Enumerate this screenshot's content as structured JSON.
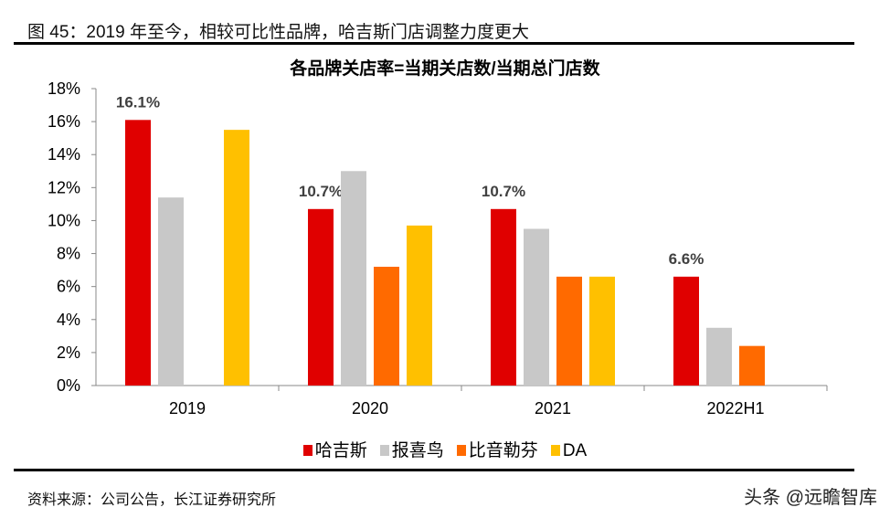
{
  "figure_title": "图 45：2019 年至今，相较可比性品牌，哈吉斯门店调整力度更大",
  "source": "资料来源：公司公告，长江证券研究所",
  "watermark": "头条 @远瞻智库",
  "chart_data": {
    "type": "bar",
    "title": "各品牌关店率=当期关店数/当期总门店数",
    "categories": [
      "2019",
      "2020",
      "2021",
      "2022H1"
    ],
    "ylim": [
      0,
      18
    ],
    "yticks": [
      0,
      2,
      4,
      6,
      8,
      10,
      12,
      14,
      16,
      18
    ],
    "ytick_format": "%",
    "grid": false,
    "legend": "bottom",
    "series": [
      {
        "name": "哈吉斯",
        "color": "#E00000",
        "values": [
          16.1,
          10.7,
          10.7,
          6.6
        ],
        "data_labels": [
          "16.1%",
          "10.7%",
          "10.7%",
          "6.6%"
        ]
      },
      {
        "name": "报喜鸟",
        "color": "#C8C8C8",
        "values": [
          11.4,
          13.0,
          9.5,
          3.5
        ]
      },
      {
        "name": "比音勒芬",
        "color": "#FF6A00",
        "values": [
          null,
          7.2,
          6.6,
          2.4
        ]
      },
      {
        "name": "DA",
        "color": "#FFC000",
        "values": [
          15.5,
          9.7,
          6.6,
          null
        ]
      }
    ]
  }
}
